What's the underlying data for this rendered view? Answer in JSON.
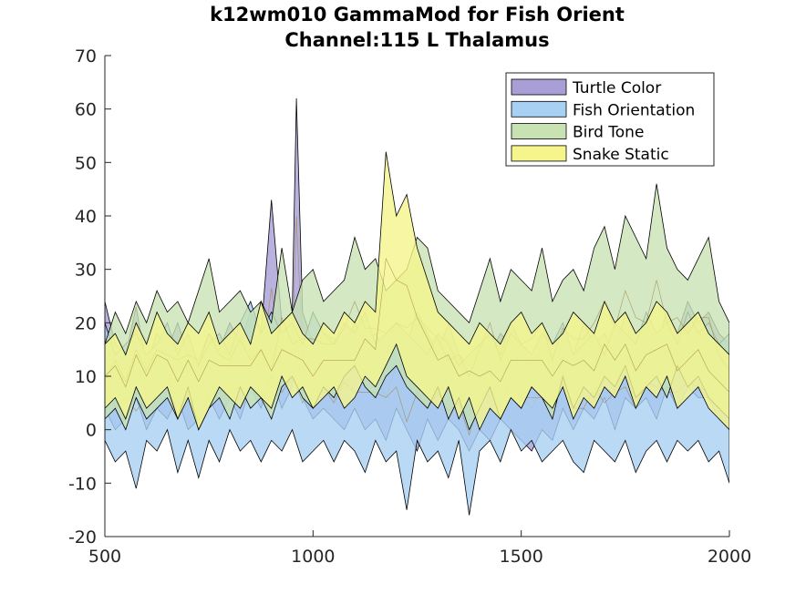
{
  "chart_data": {
    "type": "area",
    "title": [
      "k12wm010 GammaMod for Fish Orient",
      "Channel:115 L Thalamus"
    ],
    "xlabel": "",
    "ylabel": "",
    "xlim": [
      500,
      2000
    ],
    "ylim": [
      -20,
      70
    ],
    "xticks": [
      500,
      1000,
      1500,
      2000
    ],
    "yticks": [
      -20,
      -10,
      0,
      10,
      20,
      30,
      40,
      50,
      60,
      70
    ],
    "grid": false,
    "legend_position": "top-right",
    "series": [
      {
        "name": "Turtle Color",
        "color": "#a99fd6",
        "x": [
          500,
          525,
          550,
          575,
          600,
          625,
          650,
          675,
          700,
          725,
          750,
          775,
          800,
          825,
          850,
          875,
          900,
          925,
          950,
          960,
          975,
          1000,
          1025,
          1050,
          1075,
          1100,
          1125,
          1150,
          1175,
          1200,
          1225,
          1250,
          1275,
          1300,
          1325,
          1350,
          1375,
          1400,
          1425,
          1450,
          1475,
          1500,
          1525,
          1550,
          1575,
          1600,
          1625,
          1650,
          1675,
          1700,
          1725,
          1750,
          1775,
          1800,
          1825,
          1850,
          1875,
          1900,
          1925,
          1950,
          1975,
          2000
        ],
        "upper": [
          24,
          16,
          14,
          23,
          12,
          18,
          15,
          20,
          14,
          12,
          18,
          15,
          20,
          16,
          22,
          18,
          43,
          20,
          22,
          62,
          22,
          16,
          18,
          17,
          15,
          20,
          16,
          18,
          14,
          20,
          16,
          22,
          18,
          14,
          20,
          14,
          12,
          16,
          14,
          18,
          16,
          14,
          12,
          16,
          14,
          18,
          14,
          20,
          16,
          18,
          14,
          22,
          18,
          20,
          16,
          22,
          18,
          24,
          20,
          22,
          18,
          16
        ],
        "lower": [
          4,
          0,
          2,
          6,
          0,
          4,
          2,
          6,
          0,
          2,
          6,
          2,
          6,
          2,
          8,
          4,
          10,
          4,
          8,
          18,
          6,
          2,
          4,
          2,
          0,
          4,
          0,
          2,
          -2,
          4,
          0,
          -4,
          2,
          -2,
          2,
          0,
          -4,
          0,
          -2,
          2,
          0,
          -2,
          -4,
          0,
          -2,
          4,
          0,
          4,
          2,
          6,
          0,
          6,
          4,
          6,
          2,
          8,
          4,
          8,
          6,
          6,
          2,
          0
        ]
      },
      {
        "name": "Fish Orientation",
        "color": "#a8d0f2",
        "x": [
          500,
          525,
          550,
          575,
          600,
          625,
          650,
          675,
          700,
          725,
          750,
          775,
          800,
          825,
          850,
          875,
          900,
          925,
          950,
          975,
          1000,
          1025,
          1050,
          1075,
          1100,
          1125,
          1150,
          1175,
          1200,
          1225,
          1250,
          1275,
          1300,
          1325,
          1350,
          1375,
          1400,
          1425,
          1450,
          1475,
          1500,
          1525,
          1550,
          1575,
          1600,
          1625,
          1650,
          1675,
          1700,
          1725,
          1750,
          1775,
          1800,
          1825,
          1850,
          1875,
          1900,
          1925,
          1950,
          1975,
          2000
        ],
        "upper": [
          20,
          14,
          16,
          18,
          14,
          16,
          20,
          14,
          18,
          12,
          16,
          18,
          14,
          20,
          24,
          18,
          22,
          18,
          20,
          16,
          22,
          18,
          16,
          20,
          18,
          22,
          16,
          18,
          20,
          18,
          16,
          14,
          18,
          16,
          12,
          14,
          16,
          18,
          14,
          20,
          16,
          14,
          18,
          16,
          20,
          14,
          16,
          18,
          14,
          20,
          18,
          16,
          22,
          18,
          20,
          16,
          22,
          18,
          20,
          16,
          18
        ],
        "lower": [
          -2,
          -6,
          -4,
          -11,
          -2,
          -4,
          0,
          -8,
          -2,
          -9,
          -2,
          -6,
          0,
          -4,
          -2,
          -6,
          -2,
          -4,
          0,
          -6,
          -4,
          -2,
          -6,
          -2,
          -4,
          -8,
          -2,
          -6,
          -4,
          -15,
          -2,
          -6,
          -4,
          -9,
          -2,
          -16,
          -4,
          -2,
          -6,
          0,
          -4,
          -2,
          -6,
          -4,
          -2,
          -6,
          -8,
          -2,
          -4,
          -6,
          -2,
          -8,
          -4,
          -2,
          -6,
          -2,
          -4,
          -2,
          -6,
          -4,
          -10
        ]
      },
      {
        "name": "Bird Tone",
        "color": "#c8e2b4",
        "x": [
          500,
          525,
          550,
          575,
          600,
          625,
          650,
          675,
          700,
          725,
          750,
          775,
          800,
          825,
          850,
          875,
          900,
          925,
          950,
          975,
          1000,
          1025,
          1050,
          1075,
          1100,
          1125,
          1150,
          1175,
          1200,
          1225,
          1250,
          1275,
          1300,
          1325,
          1350,
          1375,
          1400,
          1425,
          1450,
          1475,
          1500,
          1525,
          1550,
          1575,
          1600,
          1625,
          1650,
          1675,
          1700,
          1725,
          1750,
          1775,
          1800,
          1825,
          1850,
          1875,
          1900,
          1925,
          1950,
          1975,
          2000
        ],
        "upper": [
          16,
          22,
          18,
          24,
          20,
          26,
          22,
          24,
          20,
          26,
          32,
          22,
          24,
          26,
          22,
          24,
          20,
          34,
          22,
          28,
          30,
          24,
          26,
          28,
          36,
          30,
          32,
          26,
          28,
          30,
          36,
          34,
          26,
          24,
          22,
          20,
          26,
          32,
          24,
          30,
          28,
          26,
          34,
          24,
          28,
          30,
          26,
          34,
          38,
          30,
          40,
          36,
          32,
          46,
          34,
          30,
          28,
          32,
          36,
          24,
          20
        ],
        "lower": [
          2,
          4,
          0,
          6,
          2,
          4,
          6,
          2,
          8,
          0,
          4,
          6,
          2,
          8,
          4,
          6,
          2,
          8,
          10,
          6,
          4,
          8,
          6,
          10,
          12,
          8,
          6,
          10,
          12,
          8,
          6,
          4,
          8,
          2,
          6,
          0,
          4,
          8,
          2,
          6,
          4,
          8,
          6,
          2,
          10,
          4,
          8,
          6,
          10,
          8,
          12,
          6,
          8,
          10,
          6,
          12,
          8,
          10,
          6,
          4,
          2
        ]
      },
      {
        "name": "Snake Static",
        "color": "#f5f58c",
        "x": [
          500,
          525,
          550,
          575,
          600,
          625,
          650,
          675,
          700,
          725,
          750,
          775,
          800,
          825,
          850,
          875,
          900,
          925,
          950,
          975,
          1000,
          1025,
          1050,
          1075,
          1100,
          1125,
          1150,
          1175,
          1200,
          1225,
          1250,
          1275,
          1300,
          1325,
          1350,
          1375,
          1400,
          1425,
          1450,
          1475,
          1500,
          1525,
          1550,
          1575,
          1600,
          1625,
          1650,
          1675,
          1700,
          1725,
          1750,
          1775,
          1800,
          1825,
          1850,
          1875,
          1900,
          1925,
          1950,
          1975,
          2000
        ],
        "upper": [
          16,
          18,
          14,
          20,
          16,
          22,
          18,
          16,
          20,
          18,
          22,
          16,
          18,
          20,
          16,
          24,
          18,
          20,
          22,
          18,
          16,
          20,
          18,
          22,
          20,
          24,
          22,
          52,
          40,
          44,
          34,
          28,
          22,
          20,
          18,
          16,
          20,
          18,
          16,
          20,
          22,
          18,
          20,
          16,
          18,
          22,
          20,
          18,
          24,
          20,
          22,
          18,
          20,
          24,
          22,
          18,
          20,
          22,
          18,
          16,
          14
        ],
        "lower": [
          4,
          6,
          2,
          8,
          4,
          6,
          8,
          2,
          6,
          0,
          4,
          8,
          6,
          4,
          8,
          6,
          4,
          10,
          6,
          8,
          4,
          6,
          8,
          4,
          6,
          10,
          8,
          12,
          16,
          10,
          8,
          6,
          4,
          8,
          2,
          6,
          0,
          4,
          2,
          6,
          4,
          8,
          6,
          4,
          8,
          2,
          6,
          4,
          8,
          6,
          10,
          4,
          8,
          6,
          10,
          4,
          6,
          8,
          4,
          2,
          0
        ]
      }
    ]
  }
}
